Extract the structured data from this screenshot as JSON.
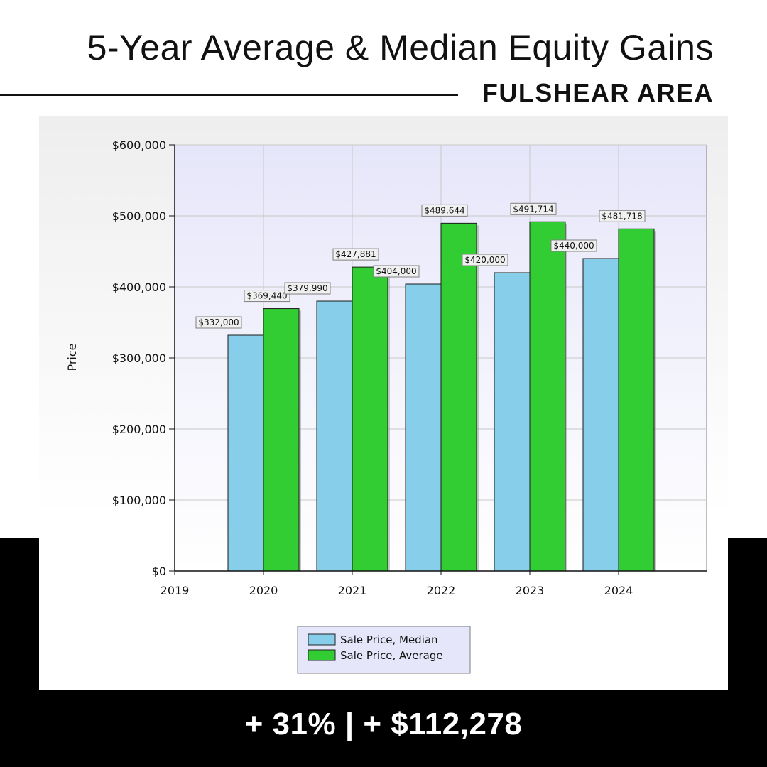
{
  "header": {
    "title": "5-Year Average & Median Equity Gains",
    "subtitle": "FULSHEAR AREA"
  },
  "footer": {
    "stats": "+ 31%  |  + $112,278"
  },
  "colors": {
    "median": "#87CEEB",
    "average": "#32CD32",
    "plot_top": "#e6e6fa",
    "plot_bottom": "#ffffff",
    "band": "#000000"
  },
  "chart_data": {
    "type": "bar",
    "title": "",
    "xlabel": "",
    "ylabel": "Price",
    "x_ticks": [
      "2019",
      "2020",
      "2021",
      "2022",
      "2023",
      "2024"
    ],
    "categories": [
      "2020",
      "2021",
      "2022",
      "2023",
      "2024"
    ],
    "series": [
      {
        "name": "Sale Price, Median",
        "values": [
          332000,
          379990,
          404000,
          420000,
          440000
        ],
        "labels": [
          "$332,000",
          "$379,990",
          "$404,000",
          "$420,000",
          "$440,000"
        ]
      },
      {
        "name": "Sale Price, Average",
        "values": [
          369440,
          427881,
          489644,
          491714,
          481718
        ],
        "labels": [
          "$369,440",
          "$427,881",
          "$489,644",
          "$491,714",
          "$481,718"
        ]
      }
    ],
    "ylim": [
      0,
      600000
    ],
    "y_ticks": [
      0,
      100000,
      200000,
      300000,
      400000,
      500000,
      600000
    ],
    "y_tick_labels": [
      "$0",
      "$100,000",
      "$200,000",
      "$300,000",
      "$400,000",
      "$500,000",
      "$600,000"
    ],
    "grid": true,
    "legend_position": "bottom-center"
  }
}
